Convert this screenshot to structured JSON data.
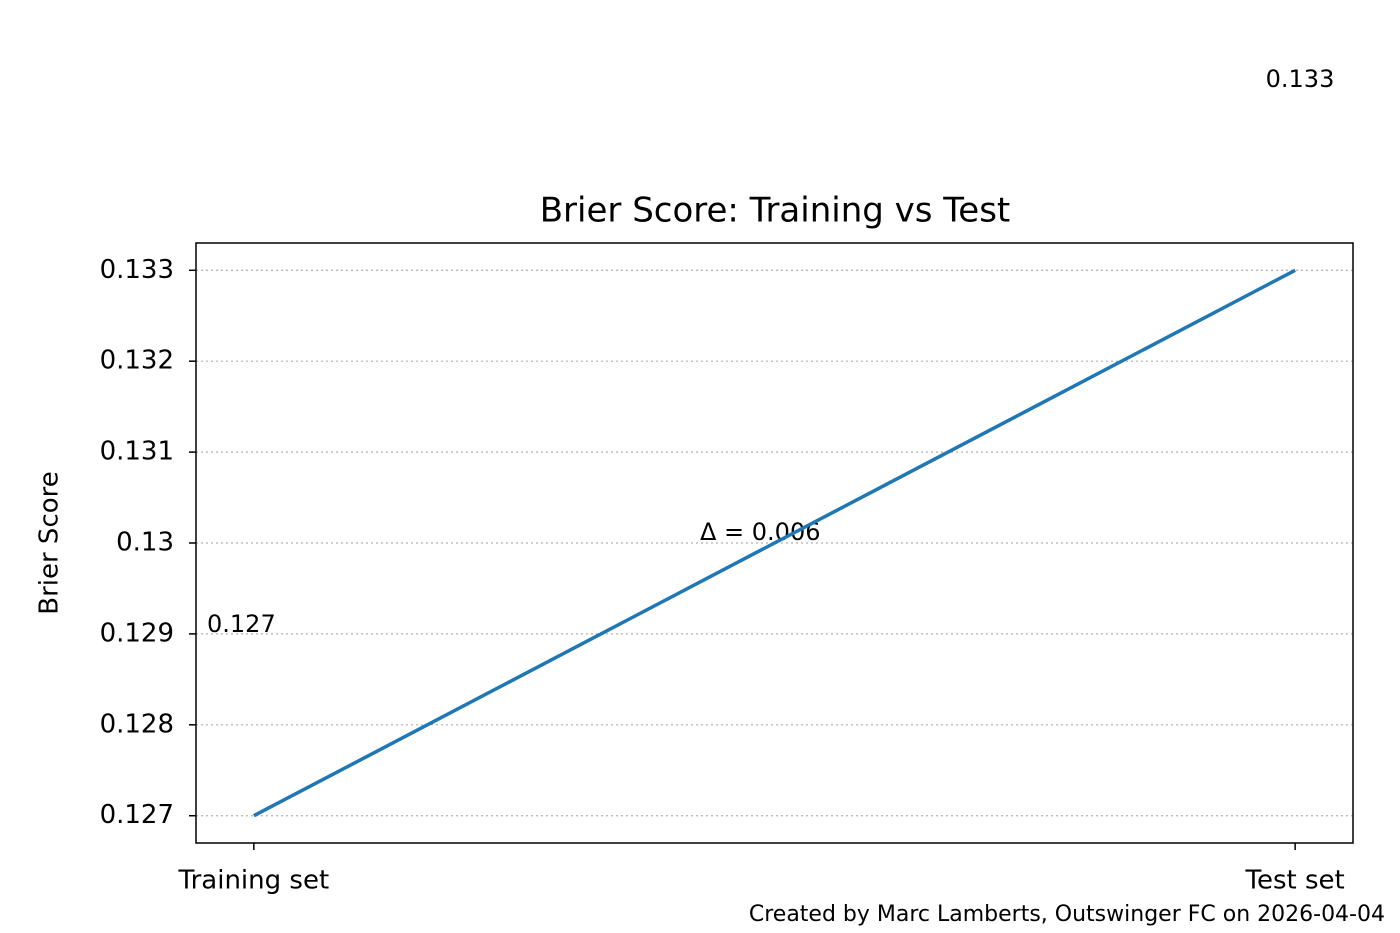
{
  "chart_data": {
    "type": "line",
    "title": "Brier Score: Training vs Test",
    "ylabel": "Brier Score",
    "categories": [
      "Training set",
      "Test set"
    ],
    "series": [
      {
        "color": "#1f77b4",
        "values": [
          0.127,
          0.133
        ],
        "value_labels": [
          "0.127",
          "0.133"
        ]
      }
    ],
    "ylim": [
      0.1267,
      0.1333
    ],
    "yticks": [
      0.127,
      0.128,
      0.129,
      0.13,
      0.131,
      0.132,
      0.133
    ],
    "grid": true,
    "annotation": "Δ = 0.006",
    "footer": "Created by Marc Lamberts, Outswinger FC on 2026-04-04"
  }
}
